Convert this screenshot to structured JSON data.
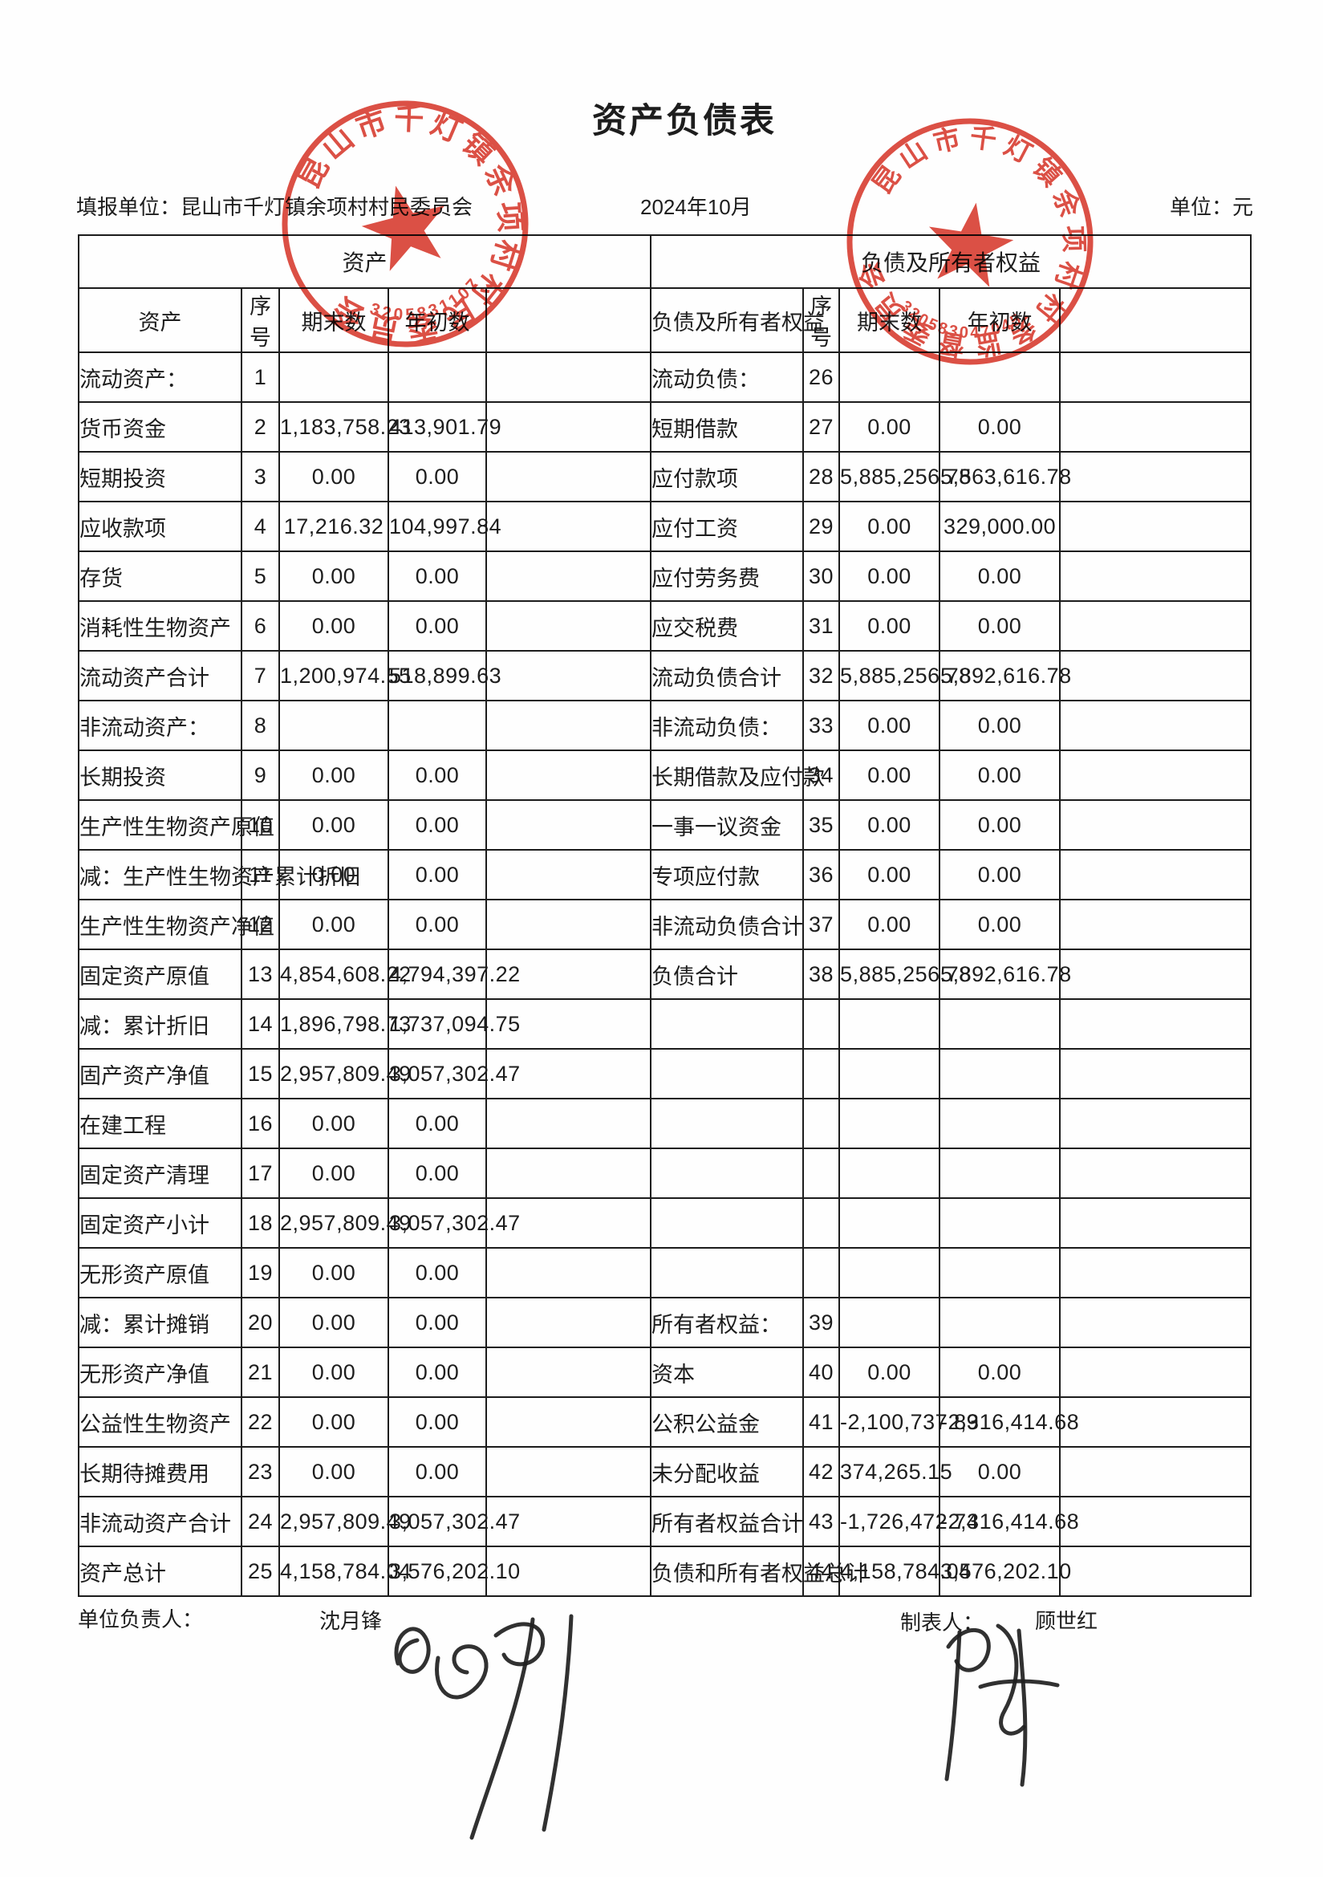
{
  "page": {
    "title": "资产负债表",
    "report_unit_line": "填报单位：昆山市千灯镇余项村村民委员会",
    "period": "2024年10月",
    "currency_unit": "单位：元"
  },
  "table": {
    "sections": {
      "assets": "资产",
      "liabilities": "负债及所有者权益"
    },
    "columns": {
      "asset": "资产",
      "no": "序号",
      "ending": "期末数",
      "beginning": "年初数",
      "liability": "负债及所有者权益"
    },
    "rows": [
      {
        "a": [
          "流动资产：",
          "1",
          "",
          ""
        ],
        "ac": "flush",
        "l": [
          "流动负债：",
          "26",
          "",
          ""
        ],
        "lc": "flush"
      },
      {
        "a": [
          "货币资金",
          "2",
          "1,183,758.23",
          "413,901.79"
        ],
        "ac": "item",
        "l": [
          "短期借款",
          "27",
          "0.00",
          "0.00"
        ],
        "lc": "item"
      },
      {
        "a": [
          "短期投资",
          "3",
          "0.00",
          "0.00"
        ],
        "ac": "item",
        "l": [
          "应付款项",
          "28",
          "5,885,256.78",
          "5,563,616.78"
        ],
        "lc": "item"
      },
      {
        "a": [
          "应收款项",
          "4",
          "17,216.32",
          "104,997.84"
        ],
        "ac": "item",
        "l": [
          "应付工资",
          "29",
          "0.00",
          "329,000.00"
        ],
        "lc": "item"
      },
      {
        "a": [
          "存货",
          "5",
          "0.00",
          "0.00"
        ],
        "ac": "item",
        "l": [
          "应付劳务费",
          "30",
          "0.00",
          "0.00"
        ],
        "lc": "item"
      },
      {
        "a": [
          "消耗性生物资产",
          "6",
          "0.00",
          "0.00"
        ],
        "ac": "item s1",
        "l": [
          "应交税费",
          "31",
          "0.00",
          "0.00"
        ],
        "lc": "item"
      },
      {
        "a": [
          "流动资产合计",
          "7",
          "1,200,974.55",
          "518,899.63"
        ],
        "ac": "total s1",
        "l": [
          "流动负债合计",
          "32",
          "5,885,256.78",
          "5,892,616.78"
        ],
        "lc": "total s1"
      },
      {
        "a": [
          "非流动资产：",
          "8",
          "",
          ""
        ],
        "ac": "flush",
        "l": [
          "非流动负债：",
          "33",
          "0.00",
          "0.00"
        ],
        "lc": "flush"
      },
      {
        "a": [
          "长期投资",
          "9",
          "0.00",
          "0.00"
        ],
        "ac": "item",
        "l": [
          "长期借款及应付款",
          "34",
          "0.00",
          "0.00"
        ],
        "lc": "item s2"
      },
      {
        "a": [
          "生产性生物资产原值",
          "10",
          "0.00",
          "0.00"
        ],
        "ac": "item s2",
        "l": [
          "一事一议资金",
          "35",
          "0.00",
          "0.00"
        ],
        "lc": "item s1"
      },
      {
        "a": [
          "减：生产性生物资产累计折旧",
          "11",
          "0.00",
          "0.00"
        ],
        "ac": "item s3",
        "l": [
          "专项应付款",
          "36",
          "0.00",
          "0.00"
        ],
        "lc": "item"
      },
      {
        "a": [
          "生产性生物资产净值",
          "12",
          "0.00",
          "0.00"
        ],
        "ac": "item s2",
        "l": [
          "非流动负债合计",
          "37",
          "0.00",
          "0.00"
        ],
        "lc": "total s1"
      },
      {
        "a": [
          "固定资产原值",
          "13",
          "4,854,608.22",
          "4,794,397.22"
        ],
        "ac": "item",
        "l": [
          "负债合计",
          "38",
          "5,885,256.78",
          "5,892,616.78"
        ],
        "lc": "total"
      },
      {
        "a": [
          "减：累计折旧",
          "14",
          "1,896,798.73",
          "1,737,094.75"
        ],
        "ac": "total s1",
        "l": [
          "",
          "",
          "",
          ""
        ],
        "lc": ""
      },
      {
        "a": [
          "固产资产净值",
          "15",
          "2,957,809.49",
          "3,057,302.47"
        ],
        "ac": "item",
        "l": [
          "",
          "",
          "",
          ""
        ],
        "lc": ""
      },
      {
        "a": [
          "在建工程",
          "16",
          "0.00",
          "0.00"
        ],
        "ac": "item",
        "l": [
          "",
          "",
          "",
          ""
        ],
        "lc": ""
      },
      {
        "a": [
          "固定资产清理",
          "17",
          "0.00",
          "0.00"
        ],
        "ac": "item",
        "l": [
          "",
          "",
          "",
          ""
        ],
        "lc": ""
      },
      {
        "a": [
          "固定资产小计",
          "18",
          "2,957,809.49",
          "3,057,302.47"
        ],
        "ac": "item",
        "l": [
          "",
          "",
          "",
          ""
        ],
        "lc": ""
      },
      {
        "a": [
          "无形资产原值",
          "19",
          "0.00",
          "0.00"
        ],
        "ac": "item",
        "l": [
          "",
          "",
          "",
          ""
        ],
        "lc": ""
      },
      {
        "a": [
          "减：累计摊销",
          "20",
          "0.00",
          "0.00"
        ],
        "ac": "total s1",
        "l": [
          "所有者权益：",
          "39",
          "",
          ""
        ],
        "lc": "flush"
      },
      {
        "a": [
          "无形资产净值",
          "21",
          "0.00",
          "0.00"
        ],
        "ac": "item",
        "l": [
          "资本",
          "40",
          "0.00",
          "0.00"
        ],
        "lc": "item"
      },
      {
        "a": [
          "公益性生物资产",
          "22",
          "0.00",
          "0.00"
        ],
        "ac": "item s1",
        "l": [
          "公积公益金",
          "41",
          "-2,100,737.89",
          "-2,316,414.68"
        ],
        "lc": "item"
      },
      {
        "a": [
          "长期待摊费用",
          "23",
          "0.00",
          "0.00"
        ],
        "ac": "item",
        "l": [
          "未分配收益",
          "42",
          "374,265.15",
          "0.00"
        ],
        "lc": "item"
      },
      {
        "a": [
          "非流动资产合计",
          "24",
          "2,957,809.49",
          "3,057,302.47"
        ],
        "ac": "total s1",
        "l": [
          "所有者权益合计",
          "43",
          "-1,726,472.74",
          "-2,316,414.68"
        ],
        "lc": "total s1"
      },
      {
        "a": [
          "资产总计",
          "25",
          "4,158,784.04",
          "3,576,202.10"
        ],
        "ac": "total",
        "l": [
          "负债和所有者权益总计",
          "44",
          "4,158,784.04",
          "3,576,202.10"
        ],
        "lc": "flush s2"
      }
    ]
  },
  "footer": {
    "manager_label": "单位负责人：",
    "manager_name": "沈月锋",
    "preparer_label": "制表人：",
    "preparer_name": "顾世红"
  },
  "stamps": {
    "red_color": "#d8372b",
    "left": {
      "ring_text": "昆山市千灯镇余项村村民委员会",
      "code": "320583110702"
    },
    "right": {
      "ring_text": "昆山市千灯镇余项村村务监督委员会",
      "code": "3205830470455"
    }
  }
}
